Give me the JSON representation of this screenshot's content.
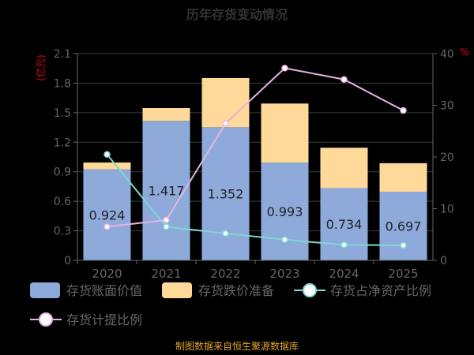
{
  "chart_data": {
    "type": "bar",
    "title": "历年存货变动情况",
    "categories": [
      "2020",
      "2021",
      "2022",
      "2023",
      "2024",
      "2025"
    ],
    "y_left": {
      "label": "(亿元)",
      "ylim": [
        0,
        2.1
      ],
      "ticks": [
        "0",
        "0.3",
        "0.6",
        "0.9",
        "1.2",
        "1.5",
        "1.8",
        "2.1"
      ]
    },
    "y_right": {
      "label": "%",
      "ylim": [
        0,
        40
      ],
      "ticks": [
        "0",
        "10",
        "20",
        "30",
        "40"
      ]
    },
    "series": [
      {
        "name": "存货账面价值",
        "type": "bar",
        "axis": "left",
        "values": [
          0.924,
          1.417,
          1.352,
          0.993,
          0.734,
          0.697
        ],
        "labels": [
          "0.924",
          "1.417",
          "1.352",
          "0.993",
          "0.734",
          "0.697"
        ]
      },
      {
        "name": "存货跌价准备",
        "type": "bar-stacked",
        "axis": "left",
        "values": [
          0.07,
          0.13,
          0.5,
          0.6,
          0.41,
          0.29
        ]
      },
      {
        "name": "存货占净资产比例",
        "type": "line",
        "axis": "right",
        "values": [
          20.5,
          6.5,
          5.2,
          4.0,
          3.0,
          2.9
        ]
      },
      {
        "name": "存货计提比例",
        "type": "line",
        "axis": "right",
        "values": [
          6.5,
          7.8,
          26.5,
          37.2,
          35.0,
          29.0
        ]
      }
    ],
    "colors": {
      "bar_value": "#8EAADB",
      "bar_reserve": "#FFD99A",
      "line_ratio": "#7DD8D2",
      "line_provision": "#E6B3E0",
      "title": "#333333",
      "axis_label": "#E0001B",
      "tick": "#666666",
      "grid": "#3a3a3a",
      "source": "#E2A429"
    },
    "legend_position": "bottom",
    "grid": true,
    "source": "制图数据来自恒生聚源数据库"
  }
}
